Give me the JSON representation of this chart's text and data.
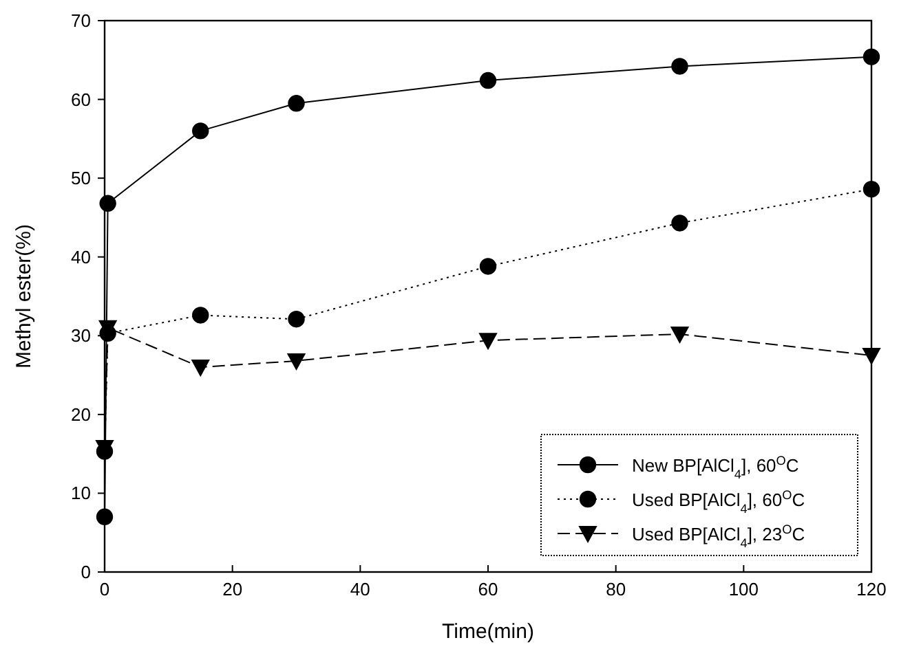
{
  "chart_data": {
    "type": "line",
    "xlabel": "Time(min)",
    "ylabel": "Methyl ester(%)",
    "xlim": [
      0,
      120
    ],
    "ylim": [
      0,
      70
    ],
    "xticks": [
      0,
      20,
      40,
      60,
      80,
      100,
      120
    ],
    "yticks": [
      0,
      10,
      20,
      30,
      40,
      50,
      60,
      70
    ],
    "grid": false,
    "legend": "bottom right",
    "series": [
      {
        "name": "New BP[AlCl$_{4}$], 60$^{O}$C",
        "color": "#000000",
        "marker": "circle",
        "line_style": "solid",
        "x": [
          0,
          0.5,
          15,
          30,
          60,
          90,
          120
        ],
        "values": [
          7,
          46.8,
          56,
          59.5,
          62.4,
          64.2,
          65.4
        ]
      },
      {
        "name": "Used BP[AlCl$_{4}$], 60$^{O}$C",
        "color": "#000000",
        "marker": "circle",
        "line_style": "dotted",
        "x": [
          0,
          0.5,
          15,
          30,
          60,
          90,
          120
        ],
        "values": [
          15.3,
          30.3,
          32.6,
          32.1,
          38.8,
          44.3,
          48.6
        ]
      },
      {
        "name": "Used BP[AlCl$_{4}$], 23$^{O}$C",
        "color": "#000000",
        "marker": "triangle",
        "line_style": "dashed",
        "x": [
          0,
          0.5,
          15,
          30,
          60,
          90,
          120
        ],
        "values": [
          15.8,
          31,
          26,
          26.8,
          29.4,
          30.2,
          27.5
        ]
      }
    ]
  }
}
